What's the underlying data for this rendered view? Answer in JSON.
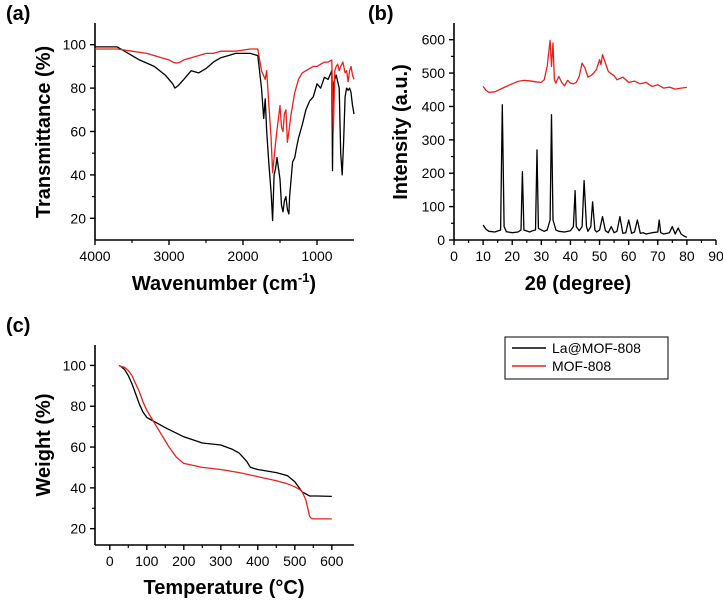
{
  "chart_data": [
    {
      "panel": "(a)",
      "type": "line",
      "title": "",
      "xlabel": "Wavenumber (cm",
      "xlabel_sup": "-1",
      "xlabel_tail": ")",
      "ylabel": "Transmittance (%)",
      "xlim": [
        4000,
        500
      ],
      "ylim": [
        10,
        110
      ],
      "xticks": [
        4000,
        3000,
        2000,
        1000
      ],
      "yticks": [
        20,
        40,
        60,
        80,
        100
      ],
      "series": [
        {
          "name": "La@MOF-808",
          "color": "#000000",
          "x": [
            4000,
            3700,
            3600,
            3400,
            3200,
            3050,
            2950,
            2920,
            2880,
            2800,
            2700,
            2600,
            2500,
            2400,
            2300,
            2200,
            2100,
            2000,
            1900,
            1800,
            1750,
            1720,
            1700,
            1680,
            1650,
            1620,
            1600,
            1580,
            1560,
            1540,
            1500,
            1480,
            1460,
            1440,
            1420,
            1400,
            1380,
            1370,
            1350,
            1330,
            1300,
            1280,
            1250,
            1200,
            1150,
            1100,
            1050,
            1000,
            950,
            900,
            850,
            800,
            790,
            780,
            760,
            740,
            700,
            680,
            660,
            640,
            620,
            600,
            580,
            560,
            540,
            520,
            510,
            500
          ],
          "y": [
            99,
            99,
            97,
            93,
            90,
            86,
            82,
            80,
            81,
            84,
            88,
            87,
            89,
            92,
            94,
            95,
            96,
            96,
            96,
            95,
            80,
            66,
            75,
            60,
            45,
            32,
            19,
            40,
            43,
            48,
            38,
            26,
            23,
            28,
            30,
            24,
            22,
            30,
            38,
            46,
            48,
            52,
            57,
            63,
            70,
            74,
            76,
            82,
            80,
            85,
            84,
            88,
            42,
            82,
            84,
            86,
            80,
            50,
            40,
            55,
            76,
            80,
            79,
            80,
            78,
            72,
            70,
            68
          ]
        },
        {
          "name": "MOF-808",
          "color": "#e8201b",
          "x": [
            4000,
            3700,
            3500,
            3300,
            3100,
            3000,
            2950,
            2900,
            2850,
            2800,
            2700,
            2600,
            2500,
            2400,
            2300,
            2200,
            2100,
            2000,
            1900,
            1800,
            1750,
            1700,
            1680,
            1650,
            1620,
            1600,
            1580,
            1550,
            1500,
            1480,
            1460,
            1440,
            1420,
            1400,
            1380,
            1350,
            1300,
            1250,
            1200,
            1150,
            1100,
            1050,
            1000,
            950,
            900,
            850,
            800,
            780,
            760,
            740,
            720,
            700,
            680,
            650,
            620,
            600,
            580,
            560,
            540,
            520,
            500
          ],
          "y": [
            98,
            98,
            97,
            96,
            94,
            93,
            92,
            91.5,
            92,
            93,
            94,
            95,
            96,
            96,
            97,
            97,
            97,
            97.5,
            98,
            98,
            88,
            84,
            88,
            72,
            57,
            41,
            48,
            58,
            72,
            62,
            60,
            68,
            70,
            55,
            60,
            68,
            78,
            84,
            87,
            88,
            89,
            90,
            90,
            91,
            92,
            92,
            93,
            60,
            88,
            90,
            91,
            88,
            90,
            92,
            87,
            88,
            83,
            88,
            90,
            86,
            84
          ]
        }
      ]
    },
    {
      "panel": "(b)",
      "type": "line",
      "title": "",
      "xlabel": "2θ (degree)",
      "ylabel": "Intensity (a.u.)",
      "xlim": [
        0,
        90
      ],
      "ylim": [
        0,
        650
      ],
      "xticks": [
        0,
        10,
        20,
        30,
        40,
        50,
        60,
        70,
        80,
        90
      ],
      "yticks": [
        0,
        100,
        200,
        300,
        400,
        500,
        600
      ],
      "series": [
        {
          "name": "La@MOF-808 (upper)",
          "color": "#e8201b",
          "x": [
            10,
            11,
            12,
            14,
            16,
            18,
            20,
            22,
            24,
            26,
            28,
            30,
            31,
            32,
            33,
            33.5,
            34,
            34.5,
            35,
            36,
            37,
            38,
            39,
            40,
            41,
            42,
            43,
            44,
            45,
            46,
            47,
            48,
            49,
            50,
            50.5,
            51,
            52,
            53,
            54,
            55,
            56,
            58,
            60,
            62,
            64,
            66,
            68,
            70,
            72,
            74,
            76,
            78,
            80
          ],
          "y": [
            460,
            448,
            442,
            444,
            452,
            460,
            468,
            475,
            478,
            477,
            474,
            472,
            480,
            520,
            598,
            520,
            590,
            480,
            470,
            490,
            472,
            462,
            478,
            470,
            468,
            472,
            490,
            530,
            515,
            488,
            492,
            500,
            512,
            540,
            525,
            555,
            530,
            505,
            498,
            492,
            480,
            488,
            472,
            476,
            468,
            472,
            460,
            465,
            455,
            458,
            452,
            455,
            457
          ]
        },
        {
          "name": "MOF-808 (lower)",
          "color": "#000000",
          "x": [
            10,
            11,
            12,
            14,
            16,
            16.6,
            17.2,
            18,
            20,
            22,
            23,
            23.5,
            24,
            26,
            27,
            28,
            28.5,
            29,
            30,
            31,
            32,
            33,
            33.5,
            34,
            35,
            36,
            38,
            40,
            41,
            41.6,
            42,
            43,
            44,
            44.7,
            45.5,
            46,
            47,
            47.6,
            48.4,
            49,
            50,
            51,
            52,
            53,
            54,
            55,
            56,
            57,
            58,
            59,
            60,
            61,
            62,
            63,
            64,
            65,
            66,
            68,
            70,
            70.5,
            71,
            72,
            74,
            75,
            76,
            77,
            78,
            79,
            80
          ],
          "y": [
            45,
            32,
            26,
            24,
            30,
            405,
            40,
            25,
            22,
            24,
            30,
            205,
            30,
            24,
            28,
            30,
            270,
            35,
            30,
            26,
            30,
            60,
            375,
            60,
            30,
            26,
            24,
            28,
            40,
            148,
            40,
            28,
            40,
            178,
            40,
            26,
            40,
            114,
            30,
            24,
            30,
            70,
            28,
            22,
            40,
            22,
            26,
            70,
            20,
            22,
            60,
            20,
            24,
            60,
            20,
            22,
            18,
            22,
            24,
            60,
            22,
            18,
            22,
            40,
            18,
            36,
            18,
            12,
            8
          ]
        }
      ]
    },
    {
      "panel": "(c)",
      "type": "line",
      "title": "",
      "xlabel": "Temperature (°C)",
      "ylabel": "Weight (%)",
      "xlim": [
        -40,
        660
      ],
      "ylim": [
        12,
        110
      ],
      "xticks": [
        0,
        100,
        200,
        300,
        400,
        500,
        600
      ],
      "yticks": [
        20,
        40,
        60,
        80,
        100
      ],
      "legend": [
        "La@MOF-808",
        "MOF-808"
      ],
      "legend_position": "right",
      "series": [
        {
          "name": "La@MOF-808",
          "color": "#000000",
          "x": [
            25,
            30,
            40,
            50,
            60,
            70,
            80,
            90,
            100,
            110,
            130,
            150,
            200,
            250,
            300,
            330,
            350,
            370,
            380,
            400,
            450,
            480,
            500,
            520,
            540,
            560,
            600
          ],
          "y": [
            100,
            99.5,
            98,
            95,
            91,
            86,
            81,
            77,
            74.5,
            73.5,
            71.5,
            69.5,
            65,
            62,
            61,
            59,
            57,
            53,
            50,
            49,
            47.5,
            46,
            43,
            38,
            36,
            36,
            35.8
          ]
        },
        {
          "name": "MOF-808",
          "color": "#e8201b",
          "x": [
            25,
            30,
            40,
            50,
            60,
            70,
            80,
            90,
            100,
            120,
            140,
            160,
            180,
            200,
            250,
            300,
            350,
            400,
            450,
            480,
            500,
            515,
            520,
            525,
            530,
            535,
            540,
            545,
            550,
            560,
            600
          ],
          "y": [
            100,
            99.5,
            99,
            97.5,
            95,
            91,
            87,
            82,
            78,
            72,
            66,
            60,
            55,
            52,
            50,
            49,
            47.5,
            45.5,
            43.5,
            42,
            40.5,
            39,
            38,
            36,
            34,
            30,
            26,
            25,
            24.8,
            24.8,
            24.8
          ]
        }
      ]
    }
  ]
}
